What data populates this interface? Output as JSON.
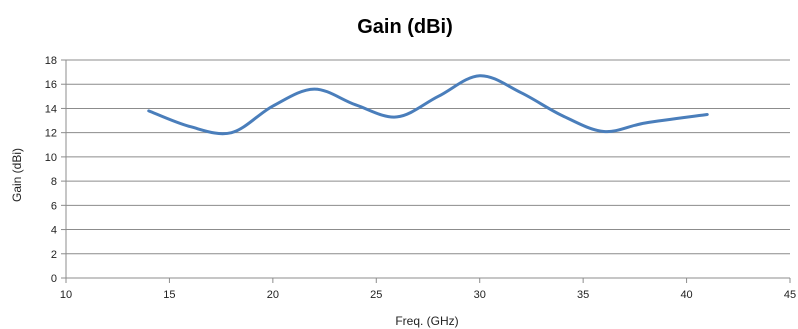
{
  "chart_data": {
    "type": "line",
    "title": "Gain (dBi)",
    "xlabel": "Freq. (GHz)",
    "ylabel": "Gain (dBi)",
    "xlim": [
      10,
      45
    ],
    "ylim": [
      0,
      18
    ],
    "x_ticks": [
      10,
      15,
      20,
      25,
      30,
      35,
      40,
      45
    ],
    "y_ticks": [
      0,
      2,
      4,
      6,
      8,
      10,
      12,
      14,
      16,
      18
    ],
    "grid": "horizontal",
    "legend": "none",
    "series": [
      {
        "color": "#4a7ebb",
        "x": [
          14,
          16,
          18,
          20,
          22,
          24,
          26,
          28,
          30,
          32,
          34,
          36,
          38,
          41
        ],
        "values": [
          13.8,
          12.5,
          12.0,
          14.2,
          15.6,
          14.3,
          13.3,
          15.0,
          16.7,
          15.3,
          13.4,
          12.1,
          12.8,
          13.5
        ]
      }
    ]
  }
}
